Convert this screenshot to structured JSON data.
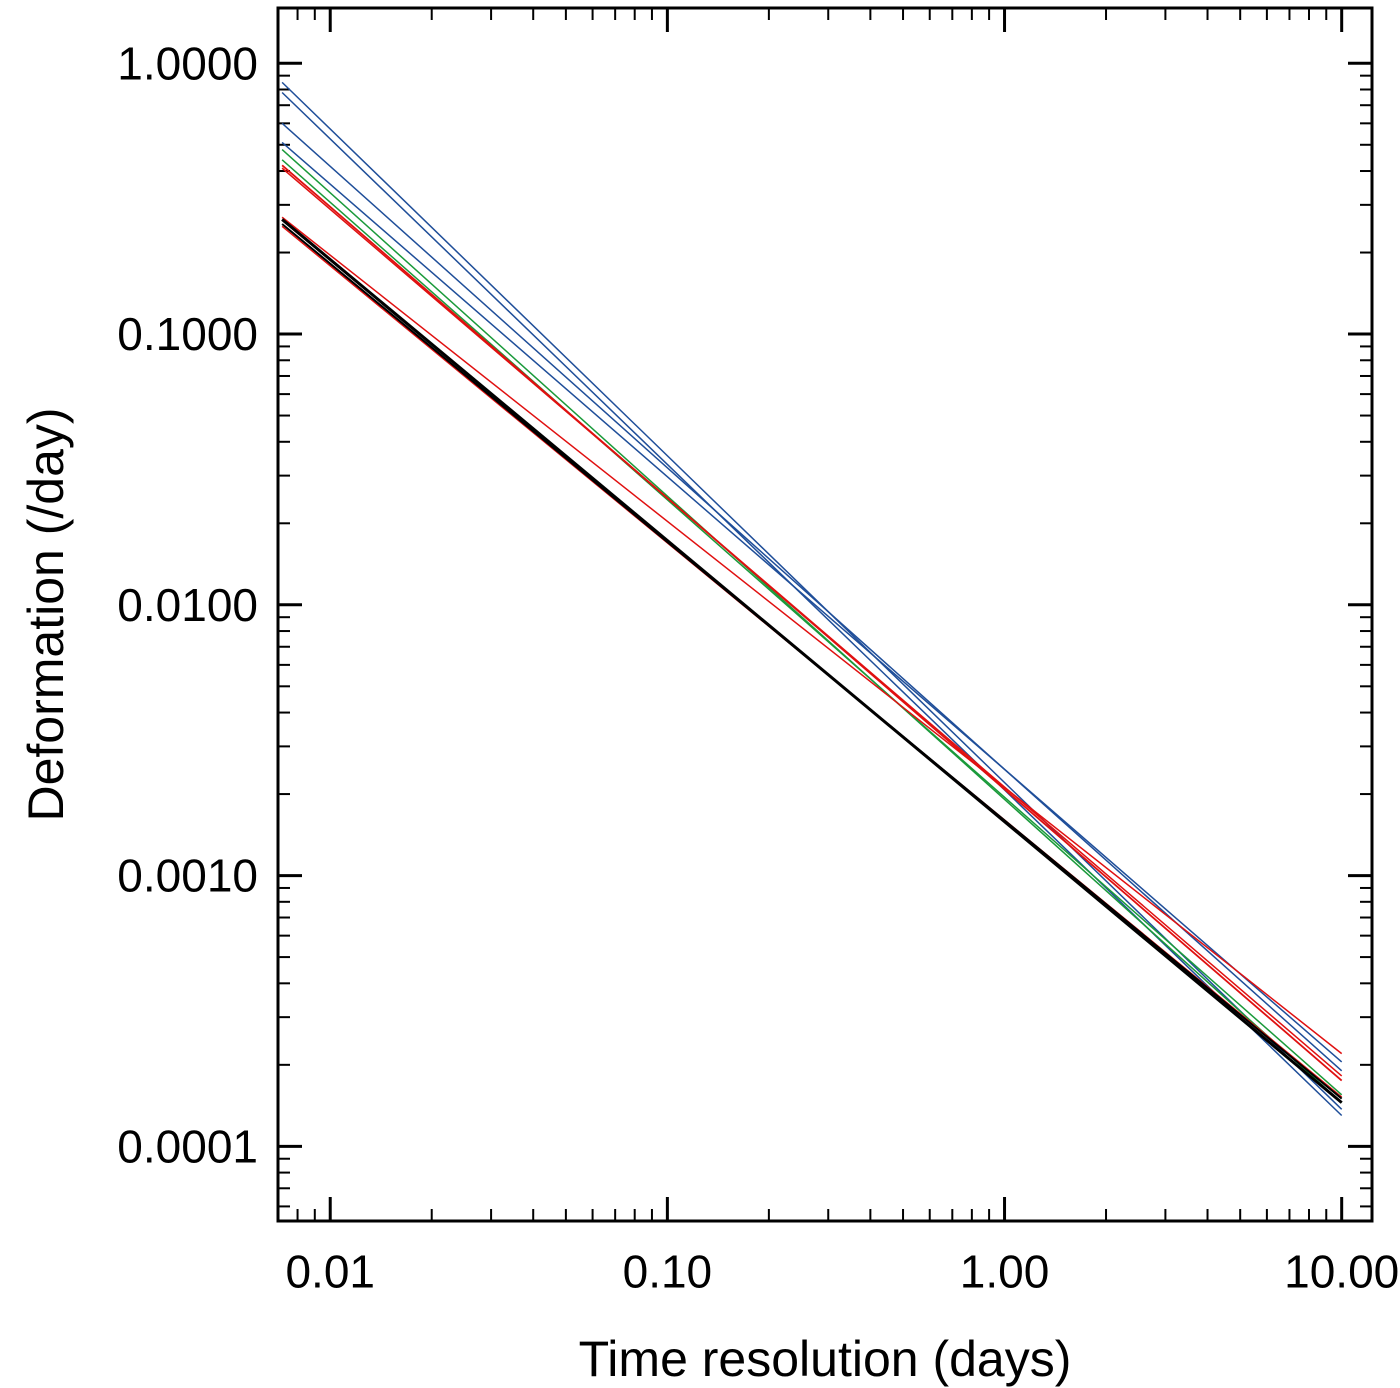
{
  "chart_data": {
    "type": "line",
    "title": "",
    "xlabel": "Time resolution (days)",
    "ylabel": "Deformation (/day)",
    "x_scale": "log",
    "y_scale": "log",
    "xlim": [
      0.007,
      12.3
    ],
    "ylim": [
      5.3e-05,
      1.6
    ],
    "grid": false,
    "legend": "none",
    "x_ticks": [
      {
        "value": 0.01,
        "label": "0.01"
      },
      {
        "value": 0.1,
        "label": "0.10"
      },
      {
        "value": 1,
        "label": "1.00"
      },
      {
        "value": 10,
        "label": "10.00"
      }
    ],
    "y_ticks": [
      {
        "value": 0.0001,
        "label": "0.0001"
      },
      {
        "value": 0.001,
        "label": "0.0010"
      },
      {
        "value": 0.01,
        "label": "0.0100"
      },
      {
        "value": 0.1,
        "label": "0.1000"
      },
      {
        "value": 1,
        "label": "1.0000"
      }
    ],
    "series": [
      {
        "color": "#1f4e99",
        "width": 1.5,
        "x": [
          0.0072,
          10
        ],
        "y": [
          0.85,
          0.000137
        ]
      },
      {
        "color": "#1f4e99",
        "width": 1.5,
        "x": [
          0.0072,
          10
        ],
        "y": [
          0.78,
          0.00013
        ]
      },
      {
        "color": "#1f4e99",
        "width": 1.5,
        "x": [
          0.0072,
          10
        ],
        "y": [
          0.6,
          0.00019
        ]
      },
      {
        "color": "#1f4e99",
        "width": 1.5,
        "x": [
          0.0072,
          10
        ],
        "y": [
          0.51,
          0.000205
        ]
      },
      {
        "color": "#1a9a3a",
        "width": 1.5,
        "x": [
          0.0072,
          10
        ],
        "y": [
          0.48,
          0.000145
        ]
      },
      {
        "color": "#1a9a3a",
        "width": 1.5,
        "x": [
          0.0072,
          10
        ],
        "y": [
          0.44,
          0.000155
        ]
      },
      {
        "color": "#e01010",
        "width": 1.8,
        "x": [
          0.0072,
          10
        ],
        "y": [
          0.42,
          0.000175
        ]
      },
      {
        "color": "#e01010",
        "width": 1.5,
        "x": [
          0.0072,
          10
        ],
        "y": [
          0.41,
          0.000182
        ]
      },
      {
        "color": "#e01010",
        "width": 1.5,
        "x": [
          0.0072,
          10
        ],
        "y": [
          0.27,
          0.00022
        ]
      },
      {
        "color": "#e01010",
        "width": 1.5,
        "x": [
          0.0072,
          10
        ],
        "y": [
          0.25,
          0.000152
        ]
      },
      {
        "color": "#000000",
        "width": 3,
        "x": [
          0.0072,
          10
        ],
        "y": [
          0.265,
          0.000145
        ]
      },
      {
        "color": "#000000",
        "width": 2,
        "x": [
          0.0072,
          10
        ],
        "y": [
          0.255,
          0.00015
        ]
      }
    ]
  }
}
